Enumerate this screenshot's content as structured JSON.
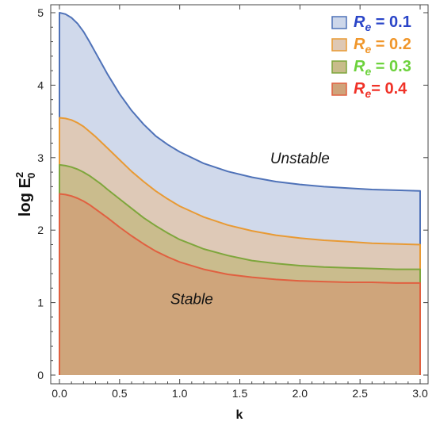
{
  "chart_data": {
    "type": "area",
    "xlabel": "k",
    "ylabel_base": "log E",
    "ylabel_sup": "2",
    "ylabel_sub": "0",
    "xlim": [
      0.0,
      3.0
    ],
    "ylim": [
      0,
      5
    ],
    "xticks": [
      "0.0",
      "0.5",
      "1.0",
      "1.5",
      "2.0",
      "2.5",
      "3.0"
    ],
    "yticks": [
      "0",
      "1",
      "2",
      "3",
      "4",
      "5"
    ],
    "x": [
      0.0,
      0.05,
      0.1,
      0.15,
      0.2,
      0.25,
      0.3,
      0.35,
      0.4,
      0.5,
      0.6,
      0.7,
      0.8,
      0.9,
      1.0,
      1.2,
      1.4,
      1.6,
      1.8,
      2.0,
      2.2,
      2.4,
      2.6,
      2.8,
      3.0
    ],
    "series": [
      {
        "name_prefix": "R",
        "name_sub": "e",
        "name_value": " = 0.1",
        "color": "#4f72b8",
        "fill": "#cdd7ea",
        "values": [
          5.0,
          4.98,
          4.93,
          4.85,
          4.74,
          4.6,
          4.45,
          4.3,
          4.15,
          3.88,
          3.65,
          3.46,
          3.3,
          3.18,
          3.08,
          2.92,
          2.81,
          2.73,
          2.67,
          2.63,
          2.6,
          2.58,
          2.56,
          2.55,
          2.54
        ]
      },
      {
        "name_prefix": "R",
        "name_sub": "e",
        "name_value": " = 0.2",
        "color": "#e89a34",
        "fill": "#dec8b4",
        "values": [
          3.55,
          3.54,
          3.52,
          3.48,
          3.43,
          3.36,
          3.29,
          3.21,
          3.13,
          2.97,
          2.81,
          2.67,
          2.54,
          2.43,
          2.33,
          2.18,
          2.07,
          1.99,
          1.93,
          1.89,
          1.86,
          1.84,
          1.82,
          1.81,
          1.8
        ]
      },
      {
        "name_prefix": "R",
        "name_sub": "e",
        "name_value": " = 0.3",
        "color": "#7ea63c",
        "fill": "#c8bc8a",
        "values": [
          2.9,
          2.89,
          2.87,
          2.84,
          2.8,
          2.75,
          2.69,
          2.63,
          2.56,
          2.43,
          2.3,
          2.17,
          2.06,
          1.96,
          1.87,
          1.74,
          1.65,
          1.58,
          1.54,
          1.51,
          1.49,
          1.48,
          1.47,
          1.46,
          1.46
        ]
      },
      {
        "name_prefix": "R",
        "name_sub": "e",
        "name_value": "= 0.4",
        "color": "#e06040",
        "fill": "#cfa37a",
        "values": [
          2.5,
          2.49,
          2.47,
          2.44,
          2.4,
          2.35,
          2.29,
          2.23,
          2.17,
          2.04,
          1.92,
          1.81,
          1.71,
          1.63,
          1.56,
          1.46,
          1.39,
          1.35,
          1.32,
          1.3,
          1.29,
          1.28,
          1.28,
          1.27,
          1.27
        ]
      }
    ],
    "legend_text_colors": [
      "#2a45c8",
      "#f0962a",
      "#6cd23c",
      "#f03228"
    ],
    "legend_position": "top-right",
    "annotations": [
      {
        "text": "Unstable",
        "x": 2.0,
        "y": 2.92
      },
      {
        "text": "Stable",
        "x": 1.1,
        "y": 0.98
      }
    ],
    "grid": false
  }
}
